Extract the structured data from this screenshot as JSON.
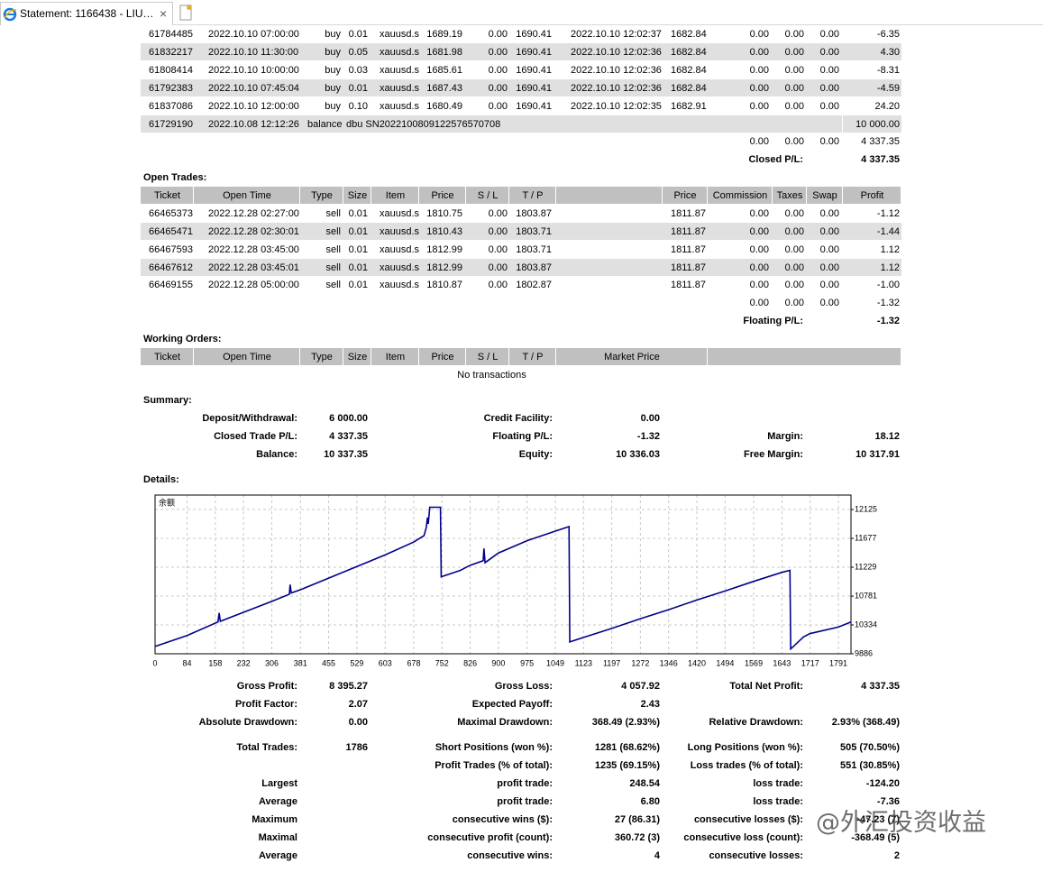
{
  "browser": {
    "tab_title": "Statement: 1166438 - LIU…",
    "close": "×"
  },
  "closed_trades": {
    "rows": [
      [
        "61784485",
        "2022.10.10 07:00:00",
        "buy",
        "0.01",
        "xauusd.s",
        "1689.19",
        "0.00",
        "1690.41",
        "2022.10.10 12:02:37",
        "1682.84",
        "0.00",
        "0.00",
        "0.00",
        "-6.35"
      ],
      [
        "61832217",
        "2022.10.10 11:30:00",
        "buy",
        "0.05",
        "xauusd.s",
        "1681.98",
        "0.00",
        "1690.41",
        "2022.10.10 12:02:36",
        "1682.84",
        "0.00",
        "0.00",
        "0.00",
        "4.30"
      ],
      [
        "61808414",
        "2022.10.10 10:00:00",
        "buy",
        "0.03",
        "xauusd.s",
        "1685.61",
        "0.00",
        "1690.41",
        "2022.10.10 12:02:36",
        "1682.84",
        "0.00",
        "0.00",
        "0.00",
        "-8.31"
      ],
      [
        "61792383",
        "2022.10.10 07:45:04",
        "buy",
        "0.01",
        "xauusd.s",
        "1687.43",
        "0.00",
        "1690.41",
        "2022.10.10 12:02:36",
        "1682.84",
        "0.00",
        "0.00",
        "0.00",
        "-4.59"
      ],
      [
        "61837086",
        "2022.10.10 12:00:00",
        "buy",
        "0.10",
        "xauusd.s",
        "1680.49",
        "0.00",
        "1690.41",
        "2022.10.10 12:02:35",
        "1682.91",
        "0.00",
        "0.00",
        "0.00",
        "24.20"
      ]
    ],
    "balance_row": {
      "ticket": "61729190",
      "time": "2022.10.08 12:12:26",
      "type": "balance",
      "comment": "dbu SN2022100809122576570708",
      "amount": "10 000.00"
    },
    "totals": [
      "0.00",
      "0.00",
      "0.00",
      "4 337.35"
    ],
    "closed_pl": {
      "label": "Closed P/L:",
      "value": "4 337.35"
    }
  },
  "open_trades": {
    "title": "Open Trades:",
    "header": [
      "Ticket",
      "Open Time",
      "Type",
      "Size",
      "Item",
      "Price",
      "S / L",
      "T / P",
      "Price",
      "Commission",
      "Taxes",
      "Swap",
      "Profit"
    ],
    "rows": [
      [
        "66465373",
        "2022.12.28 02:27:00",
        "sell",
        "0.01",
        "xauusd.s",
        "1810.75",
        "0.00",
        "1803.87",
        "1811.87",
        "0.00",
        "0.00",
        "0.00",
        "-1.12"
      ],
      [
        "66465471",
        "2022.12.28 02:30:01",
        "sell",
        "0.01",
        "xauusd.s",
        "1810.43",
        "0.00",
        "1803.71",
        "1811.87",
        "0.00",
        "0.00",
        "0.00",
        "-1.44"
      ],
      [
        "66467593",
        "2022.12.28 03:45:00",
        "sell",
        "0.01",
        "xauusd.s",
        "1812.99",
        "0.00",
        "1803.71",
        "1811.87",
        "0.00",
        "0.00",
        "0.00",
        "1.12"
      ],
      [
        "66467612",
        "2022.12.28 03:45:01",
        "sell",
        "0.01",
        "xauusd.s",
        "1812.99",
        "0.00",
        "1803.87",
        "1811.87",
        "0.00",
        "0.00",
        "0.00",
        "1.12"
      ],
      [
        "66469155",
        "2022.12.28 05:00:00",
        "sell",
        "0.01",
        "xauusd.s",
        "1810.87",
        "0.00",
        "1802.87",
        "1811.87",
        "0.00",
        "0.00",
        "0.00",
        "-1.00"
      ]
    ],
    "totals": [
      "0.00",
      "0.00",
      "0.00",
      "-1.32"
    ],
    "floating_pl": {
      "label": "Floating P/L:",
      "value": "-1.32"
    }
  },
  "working_orders": {
    "title": "Working Orders:",
    "header": [
      "Ticket",
      "Open Time",
      "Type",
      "Size",
      "Item",
      "Price",
      "S / L",
      "T / P",
      "Market Price"
    ],
    "empty": "No transactions"
  },
  "summary": {
    "title": "Summary:",
    "rows": [
      {
        "l1": "Deposit/Withdrawal:",
        "v1": "6 000.00",
        "l2": "Credit Facility:",
        "v2": "0.00"
      },
      {
        "l1": "Closed Trade P/L:",
        "v1": "4 337.35",
        "l2": "Floating P/L:",
        "v2": "-1.32",
        "l3": "Margin:",
        "v3": "18.12"
      },
      {
        "l1": "Balance:",
        "v1": "10 337.35",
        "l2": "Equity:",
        "v2": "10 336.03",
        "l3": "Free Margin:",
        "v3": "10 317.91"
      }
    ]
  },
  "details": {
    "title": "Details:"
  },
  "chart_data": {
    "type": "line",
    "x": [
      0,
      84,
      165,
      168,
      171,
      232,
      306,
      352,
      354,
      357,
      381,
      455,
      529,
      603,
      678,
      705,
      711,
      714,
      716,
      720,
      748,
      750,
      800,
      826,
      860,
      862,
      865,
      900,
      975,
      1049,
      1085,
      1087,
      1123,
      1197,
      1272,
      1346,
      1420,
      1494,
      1569,
      1643,
      1664,
      1666,
      1700,
      1717,
      1791,
      1824
    ],
    "series": [
      {
        "name": "余额",
        "color": "#00008b",
        "values": [
          10000,
          10170,
          10380,
          10520,
          10390,
          10530,
          10700,
          10810,
          10960,
          10830,
          10880,
          11060,
          11240,
          11420,
          11620,
          11720,
          11850,
          12000,
          11900,
          12160,
          12160,
          11080,
          11180,
          11260,
          11330,
          11520,
          11300,
          11450,
          11640,
          11790,
          11860,
          10070,
          10140,
          10280,
          10430,
          10570,
          10720,
          10860,
          11010,
          11150,
          11180,
          9960,
          10150,
          10200,
          10300,
          10380
        ]
      }
    ],
    "xlim": [
      0,
      1824
    ],
    "ylim": [
      9886,
      12349
    ],
    "xticks": [
      0,
      84,
      158,
      232,
      306,
      381,
      455,
      529,
      603,
      678,
      752,
      826,
      900,
      975,
      1049,
      1123,
      1197,
      1272,
      1346,
      1420,
      1494,
      1569,
      1643,
      1717,
      1791
    ],
    "yticks": [
      9886,
      10334,
      10781,
      11229,
      11677,
      12125
    ],
    "grid": true
  },
  "stats": {
    "rows": [
      {
        "l1": "Gross Profit:",
        "v1": "8 395.27",
        "l2": "Gross Loss:",
        "v2": "4 057.92",
        "l3": "Total Net Profit:",
        "v3": "4 337.35"
      },
      {
        "l1": "Profit Factor:",
        "v1": "2.07",
        "l2": "Expected Payoff:",
        "v2": "2.43"
      },
      {
        "l1": "Absolute Drawdown:",
        "v1": "0.00",
        "l2": "Maximal Drawdown:",
        "v2": "368.49 (2.93%)",
        "l3": "Relative Drawdown:",
        "v3": "2.93% (368.49)"
      },
      {
        "l1": "Total Trades:",
        "v1": "1786",
        "l2": "Short Positions (won %):",
        "v2": "1281 (68.62%)",
        "l3": "Long Positions (won %):",
        "v3": "505 (70.50%)"
      },
      {
        "l2": "Profit Trades (% of total):",
        "v2": "1235 (69.15%)",
        "l3": "Loss trades (% of total):",
        "v3": "551 (30.85%)"
      },
      {
        "l1": "Largest",
        "l2": "profit trade:",
        "v2": "248.54",
        "l3": "loss trade:",
        "v3": "-124.20"
      },
      {
        "l1": "Average",
        "l2": "profit trade:",
        "v2": "6.80",
        "l3": "loss trade:",
        "v3": "-7.36"
      },
      {
        "l1": "Maximum",
        "l2": "consecutive wins ($):",
        "v2": "27 (86.31)",
        "l3": "consecutive losses ($):",
        "v3": "-47.23 (7)"
      },
      {
        "l1": "Maximal",
        "l2": "consecutive profit (count):",
        "v2": "360.72 (3)",
        "l3": "consecutive loss (count):",
        "v3": "-368.49 (5)"
      },
      {
        "l1": "Average",
        "l2": "consecutive wins:",
        "v2": "4",
        "l3": "consecutive losses:",
        "v3": "2"
      }
    ]
  },
  "watermark": "@外汇投资收益"
}
